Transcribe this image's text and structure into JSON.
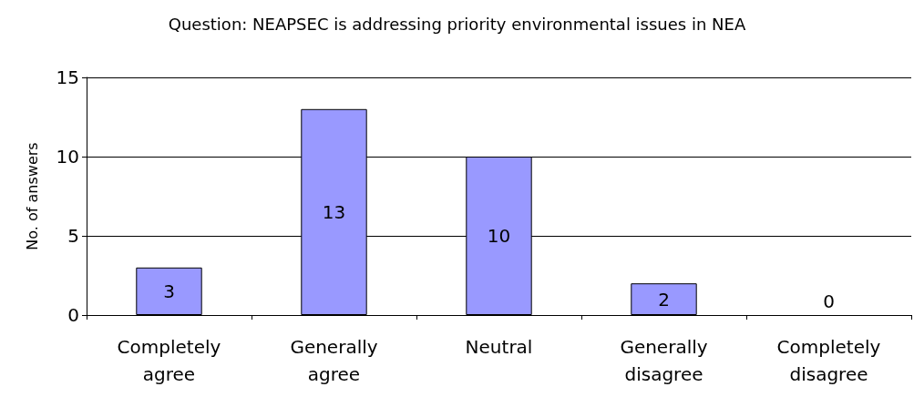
{
  "chart_data": {
    "type": "bar",
    "title": "Question: NEAPSEC is addressing priority environmental issues in NEA",
    "ylabel": "No. of answers",
    "categories": [
      "Completely\nagree",
      "Generally\nagree",
      "Neutral",
      "Generally\ndisagree",
      "Completely\ndisagree"
    ],
    "values": [
      3,
      13,
      10,
      2,
      0
    ],
    "color": "#9999ff",
    "ylim": [
      0,
      15
    ],
    "yticks": [
      0,
      5,
      10,
      15
    ],
    "grid": "y",
    "data_labels": true
  }
}
